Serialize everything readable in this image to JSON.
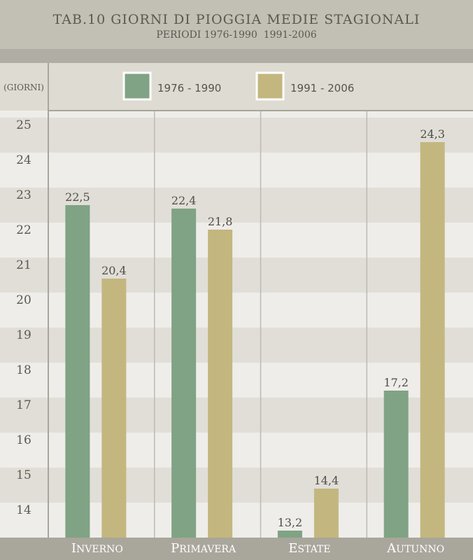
{
  "chart_data": {
    "type": "bar",
    "title": "TAB.10 GIORNI DI PIOGGIA MEDIE STAGIONALI",
    "subtitle": "PERIODI 1976-1990  1991-2006",
    "ylabel": "(GIORNI)",
    "categories": [
      "Inverno",
      "Primavera",
      "Estate",
      "Autunno"
    ],
    "series": [
      {
        "name": "1976 - 1990",
        "values": [
          22.5,
          22.4,
          13.2,
          17.2
        ],
        "labels": [
          "22,5",
          "22,4",
          "13,2",
          "17,2"
        ]
      },
      {
        "name": "1991 - 2006",
        "values": [
          20.4,
          21.8,
          14.4,
          24.3
        ],
        "labels": [
          "20,4",
          "21,8",
          "14,4",
          "24,3"
        ]
      }
    ],
    "yticks": [
      25,
      24,
      23,
      22,
      21,
      20,
      19,
      18,
      17,
      16,
      15,
      14
    ],
    "ylim": [
      13,
      25.2
    ],
    "legend_position": "top",
    "grid": "alternating horizontal bands",
    "colors": {
      "series_1": "#7fa384",
      "series_2": "#c3b77f",
      "header_bg": "#c2bfb5",
      "band_dark": "#c2bfb5",
      "title_text": "#5a5950",
      "band_light": "#efedea",
      "band_mid": "#e1ded8"
    }
  }
}
